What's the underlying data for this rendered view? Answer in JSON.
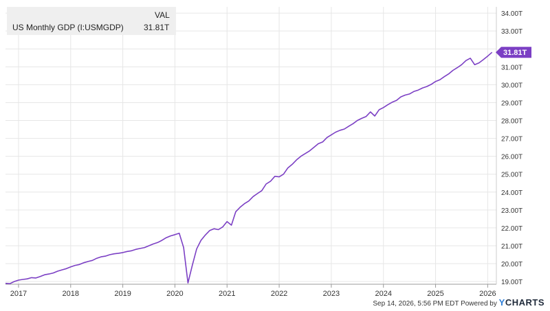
{
  "legend": {
    "header": "VAL",
    "series_name": "US Monthly GDP (I:USMGDP)",
    "value": "31.81T"
  },
  "footer": {
    "timestamp": "Sep 14, 2026, 5:56 PM EDT",
    "powered_by": "Powered by",
    "brand_prefix": "Y",
    "brand_name": "CHARTS"
  },
  "colors": {
    "line": "#7b3fc4",
    "grid": "#e6e6e6",
    "label_bg": "#7b3fc4"
  },
  "chart_data": {
    "type": "line",
    "title": "",
    "xlabel": "",
    "ylabel": "",
    "x_ticks": [
      "2017",
      "2018",
      "2019",
      "2020",
      "2021",
      "2022",
      "2023",
      "2024",
      "2025",
      "2026"
    ],
    "y_ticks": [
      "19.00T",
      "20.00T",
      "21.00T",
      "22.00T",
      "23.00T",
      "24.00T",
      "25.00T",
      "26.00T",
      "27.00T",
      "28.00T",
      "29.00T",
      "30.00T",
      "31.00T",
      "32.00T",
      "33.00T",
      "34.00T"
    ],
    "ylim": [
      18.85,
      34.35
    ],
    "xlim": [
      "2016-10",
      "2026-03"
    ],
    "grid": true,
    "last_value_label": "31.81T",
    "series": [
      {
        "name": "US Monthly GDP (I:USMGDP)",
        "x": [
          "2016-10",
          "2016-11",
          "2016-12",
          "2017-01",
          "2017-02",
          "2017-03",
          "2017-04",
          "2017-05",
          "2017-06",
          "2017-07",
          "2017-08",
          "2017-09",
          "2017-10",
          "2017-11",
          "2017-12",
          "2018-01",
          "2018-02",
          "2018-03",
          "2018-04",
          "2018-05",
          "2018-06",
          "2018-07",
          "2018-08",
          "2018-09",
          "2018-10",
          "2018-11",
          "2018-12",
          "2019-01",
          "2019-02",
          "2019-03",
          "2019-04",
          "2019-05",
          "2019-06",
          "2019-07",
          "2019-08",
          "2019-09",
          "2019-10",
          "2019-11",
          "2019-12",
          "2020-01",
          "2020-02",
          "2020-03",
          "2020-04",
          "2020-05",
          "2020-06",
          "2020-07",
          "2020-08",
          "2020-09",
          "2020-10",
          "2020-11",
          "2020-12",
          "2021-01",
          "2021-02",
          "2021-03",
          "2021-04",
          "2021-05",
          "2021-06",
          "2021-07",
          "2021-08",
          "2021-09",
          "2021-10",
          "2021-11",
          "2021-12",
          "2022-01",
          "2022-02",
          "2022-03",
          "2022-04",
          "2022-05",
          "2022-06",
          "2022-07",
          "2022-08",
          "2022-09",
          "2022-10",
          "2022-11",
          "2022-12",
          "2023-01",
          "2023-02",
          "2023-03",
          "2023-04",
          "2023-05",
          "2023-06",
          "2023-07",
          "2023-08",
          "2023-09",
          "2023-10",
          "2023-11",
          "2023-12",
          "2024-01",
          "2024-02",
          "2024-03",
          "2024-04",
          "2024-05",
          "2024-06",
          "2024-07",
          "2024-08",
          "2024-09",
          "2024-10",
          "2024-11",
          "2024-12",
          "2025-01",
          "2025-02",
          "2025-03",
          "2025-04",
          "2025-05",
          "2025-06",
          "2025-07",
          "2025-08",
          "2025-09",
          "2025-10",
          "2025-11",
          "2025-12",
          "2026-01",
          "2026-02"
        ],
        "values": [
          18.9,
          18.88,
          19.0,
          19.08,
          19.12,
          19.15,
          19.22,
          19.2,
          19.28,
          19.38,
          19.42,
          19.48,
          19.58,
          19.65,
          19.72,
          19.82,
          19.9,
          19.95,
          20.05,
          20.12,
          20.18,
          20.3,
          20.38,
          20.42,
          20.5,
          20.55,
          20.58,
          20.62,
          20.68,
          20.72,
          20.8,
          20.85,
          20.9,
          21.0,
          21.1,
          21.18,
          21.3,
          21.45,
          21.55,
          21.62,
          21.7,
          20.9,
          18.92,
          19.9,
          20.82,
          21.3,
          21.6,
          21.85,
          21.95,
          21.9,
          22.05,
          22.35,
          22.15,
          22.9,
          23.15,
          23.35,
          23.5,
          23.75,
          23.92,
          24.08,
          24.45,
          24.6,
          24.88,
          24.85,
          25.0,
          25.35,
          25.55,
          25.8,
          26.0,
          26.15,
          26.3,
          26.5,
          26.7,
          26.8,
          27.05,
          27.2,
          27.35,
          27.45,
          27.52,
          27.68,
          27.82,
          28.0,
          28.12,
          28.22,
          28.48,
          28.25,
          28.6,
          28.72,
          28.88,
          29.02,
          29.12,
          29.32,
          29.42,
          29.48,
          29.62,
          29.7,
          29.82,
          29.9,
          30.02,
          30.18,
          30.28,
          30.45,
          30.6,
          30.8,
          30.95,
          31.12,
          31.35,
          31.48,
          31.12,
          31.22,
          31.4,
          31.6,
          31.81
        ]
      }
    ]
  }
}
